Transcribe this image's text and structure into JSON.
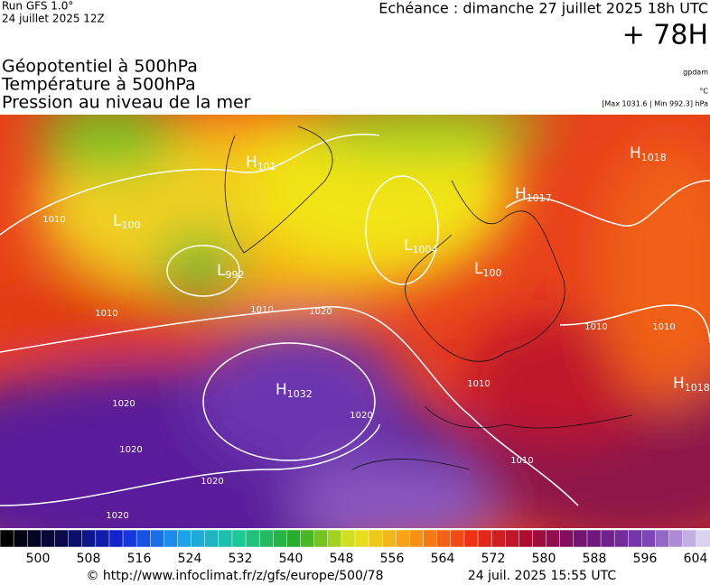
{
  "header": {
    "run": "Run GFS 1.0°",
    "run_date": "24 juillet 2025 12Z",
    "echeance": "Echéance : dimanche 27 juillet 2025 18h UTC",
    "lead": "+ 78H",
    "titles": [
      "Géopotentiel à 500hPa",
      "Température à 500hPa",
      "Pression au niveau de la mer"
    ],
    "units": [
      "gpdam",
      "°C"
    ],
    "minmax": "[Max 1031.6 | Min 992.3] hPa"
  },
  "map": {
    "pressure_centers": [
      {
        "kind": "H",
        "value": "1032"
      },
      {
        "kind": "L",
        "value": "992"
      },
      {
        "kind": "L",
        "value": "100"
      },
      {
        "kind": "H",
        "value": "101"
      },
      {
        "kind": "H",
        "value": "1017"
      },
      {
        "kind": "H",
        "value": "1018"
      },
      {
        "kind": "L",
        "value": "1004"
      },
      {
        "kind": "L",
        "value": "100"
      },
      {
        "kind": "H",
        "value": "1018"
      }
    ],
    "isobar_labels": [
      "1010",
      "1010",
      "1010",
      "1010",
      "1010",
      "1020",
      "1020",
      "1020",
      "1020",
      "1020",
      "1020",
      "1010",
      "1010"
    ]
  },
  "colorbar": {
    "ticks": [
      500,
      508,
      516,
      524,
      532,
      540,
      548,
      556,
      564,
      572,
      580,
      588,
      596,
      604
    ]
  },
  "footer": {
    "url": "© http://www.infoclimat.fr/z/gfs/europe/500/78",
    "timestamp": "24 juil. 2025 15:55 UTC"
  }
}
